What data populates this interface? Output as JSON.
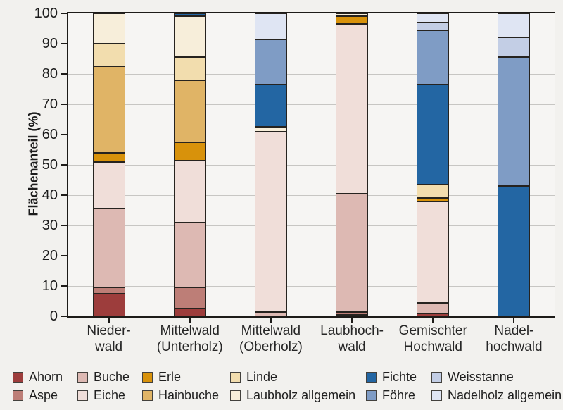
{
  "chart_data": {
    "type": "bar",
    "stacked": true,
    "orientation": "vertical",
    "ylabel": "Flächenanteil (%)",
    "ylim": [
      0,
      100
    ],
    "yticks": [
      0,
      10,
      20,
      30,
      40,
      50,
      60,
      70,
      80,
      90,
      100
    ],
    "grid": true,
    "unit": "percent",
    "categories": [
      {
        "id": "niederwald",
        "name": "Niederwald",
        "label_lines": [
          "Nieder-",
          "wald"
        ]
      },
      {
        "id": "mittelwald-unterholz",
        "name": "Mittelwald (Unterholz)",
        "label_lines": [
          "Mittelwald",
          "(Unterholz)"
        ]
      },
      {
        "id": "mittelwald-oberholz",
        "name": "Mittelwald (Oberholz)",
        "label_lines": [
          "Mittelwald",
          "(Oberholz)"
        ]
      },
      {
        "id": "laubhochwald",
        "name": "Laubhochwald",
        "label_lines": [
          "Laubhoch-",
          "wald"
        ]
      },
      {
        "id": "gemischter-hochwald",
        "name": "Gemischter Hochwald",
        "label_lines": [
          "Gemischter",
          "Hochwald"
        ]
      },
      {
        "id": "nadelhochwald",
        "name": "Nadelhochwald",
        "label_lines": [
          "Nadel-",
          "hochwald"
        ]
      }
    ],
    "series": [
      {
        "id": "ahorn",
        "name": "Ahorn",
        "color": "#9d3d3c",
        "values": [
          7.5,
          2.5,
          0,
          0.5,
          1,
          0
        ]
      },
      {
        "id": "aspe",
        "name": "Aspe",
        "color": "#bd7e77",
        "values": [
          2,
          7,
          0,
          1,
          0,
          0
        ]
      },
      {
        "id": "buche",
        "name": "Buche",
        "color": "#ddb9b3",
        "values": [
          26,
          21.5,
          1.5,
          39,
          3.5,
          0
        ]
      },
      {
        "id": "eiche",
        "name": "Eiche",
        "color": "#f0ded9",
        "values": [
          15.5,
          20.5,
          59.5,
          56,
          33.5,
          0
        ]
      },
      {
        "id": "erle",
        "name": "Erle",
        "color": "#d8920b",
        "values": [
          3,
          6,
          0,
          2.5,
          1,
          0
        ]
      },
      {
        "id": "hainbuche",
        "name": "Hainbuche",
        "color": "#e0b466",
        "values": [
          28.5,
          20.5,
          0,
          0,
          0,
          0
        ]
      },
      {
        "id": "linde",
        "name": "Linde",
        "color": "#f2ddae",
        "values": [
          7.5,
          7.5,
          0,
          0,
          4.5,
          0
        ]
      },
      {
        "id": "laubholz-allgemein",
        "name": "Laubholz allgemein",
        "color": "#f7eeda",
        "values": [
          10,
          13.5,
          1.5,
          1,
          0,
          0
        ]
      },
      {
        "id": "fichte",
        "name": "Fichte",
        "color": "#2366a3",
        "values": [
          0,
          1,
          14,
          0,
          33,
          43
        ]
      },
      {
        "id": "foehre",
        "name": "Föhre",
        "color": "#7f9cc5",
        "values": [
          0,
          0,
          15,
          0,
          18,
          42.5
        ]
      },
      {
        "id": "weisstanne",
        "name": "Weisstanne",
        "color": "#c3cee5",
        "values": [
          0,
          0,
          0,
          0,
          2.5,
          6.5
        ]
      },
      {
        "id": "nadelholz-allgemein",
        "name": "Nadelholz allgemein",
        "color": "#dfe5f3",
        "values": [
          0,
          0,
          8.5,
          0,
          3,
          8
        ]
      }
    ],
    "legend": {
      "position": "bottom",
      "columns": [
        [
          "ahorn",
          "aspe"
        ],
        [
          "buche",
          "eiche"
        ],
        [
          "erle",
          "hainbuche"
        ],
        [
          "linde",
          "laubholz-allgemein"
        ],
        [
          "fichte",
          "foehre"
        ],
        [
          "weisstanne",
          "nadelholz-allgemein"
        ]
      ]
    }
  }
}
